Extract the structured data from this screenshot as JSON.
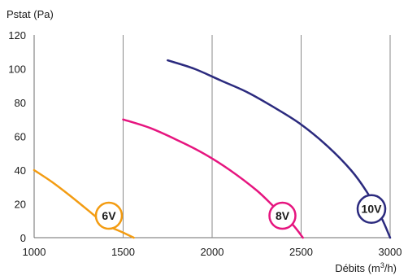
{
  "chart_data": {
    "type": "line",
    "ylabel": "Pstat (Pa)",
    "xlabel_main": "Débits (m",
    "xlabel_sup": "3",
    "xlabel_tail": "/h)",
    "xlim": [
      1000,
      3000
    ],
    "ylim": [
      0,
      120
    ],
    "x_ticks": [
      1000,
      1500,
      2000,
      2500,
      3000
    ],
    "y_ticks": [
      0,
      20,
      40,
      60,
      80,
      100,
      120
    ],
    "grid": {
      "vertical": true,
      "horizontal": false
    },
    "series": [
      {
        "name": "6V",
        "color": "#f39c12",
        "points": [
          [
            1000,
            40
          ],
          [
            1100,
            33
          ],
          [
            1200,
            25
          ],
          [
            1300,
            16.5
          ],
          [
            1400,
            8
          ],
          [
            1500,
            3
          ],
          [
            1560,
            0
          ]
        ],
        "badge": [
          1420,
          13
        ]
      },
      {
        "name": "8V",
        "color": "#e6157f",
        "points": [
          [
            1500,
            70
          ],
          [
            1650,
            65
          ],
          [
            1800,
            58
          ],
          [
            1950,
            50
          ],
          [
            2100,
            40
          ],
          [
            2250,
            28
          ],
          [
            2350,
            18
          ],
          [
            2450,
            8
          ],
          [
            2510,
            0
          ]
        ],
        "badge": [
          2395,
          13
        ]
      },
      {
        "name": "10V",
        "color": "#2b2a7e",
        "points": [
          [
            1750,
            105
          ],
          [
            1900,
            100
          ],
          [
            2050,
            93
          ],
          [
            2200,
            86
          ],
          [
            2350,
            77
          ],
          [
            2500,
            67
          ],
          [
            2650,
            54
          ],
          [
            2780,
            40
          ],
          [
            2870,
            27
          ],
          [
            2950,
            12
          ],
          [
            3000,
            0
          ]
        ],
        "badge": [
          2895,
          17
        ]
      }
    ]
  }
}
